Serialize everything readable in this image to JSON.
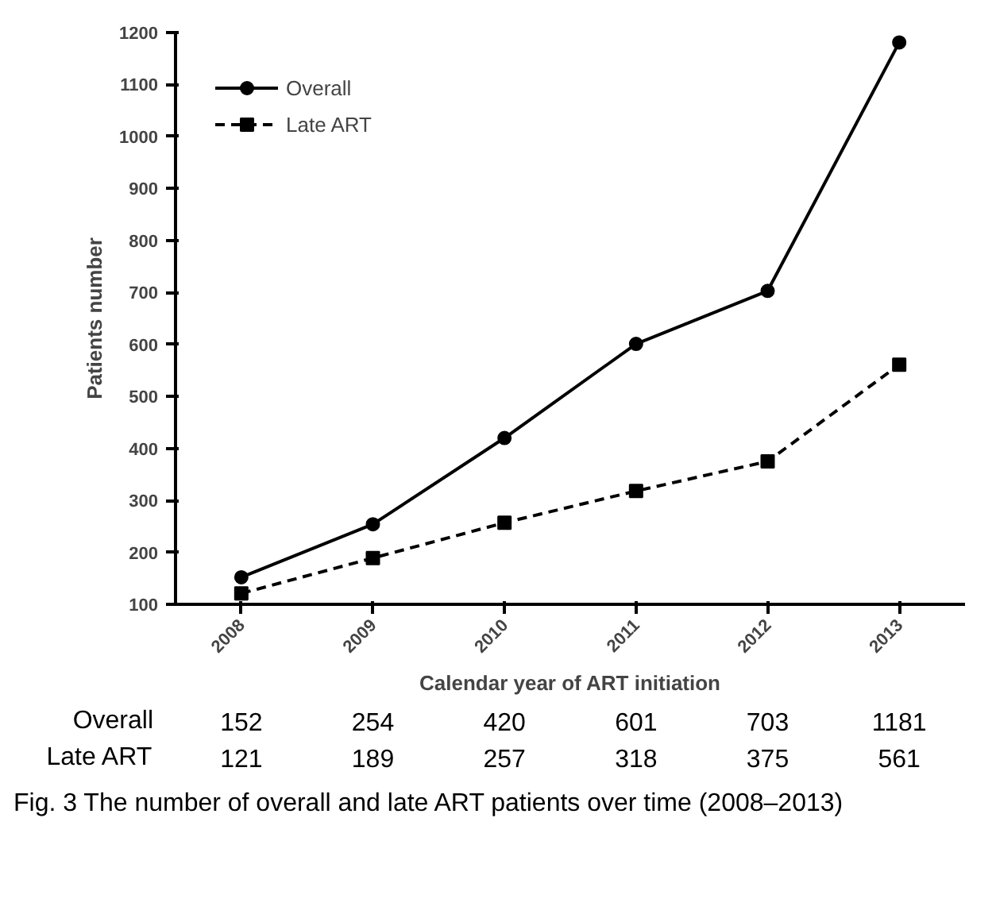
{
  "chart_data": {
    "type": "line",
    "xlabel": "Calendar year of ART initiation",
    "ylabel": "Patients number",
    "categories": [
      "2008",
      "2009",
      "2010",
      "2011",
      "2012",
      "2013"
    ],
    "series": [
      {
        "name": "Overall",
        "color": "#000000",
        "marker": "circle",
        "line_style": "solid",
        "values": [
          152,
          254,
          420,
          601,
          703,
          1181
        ]
      },
      {
        "name": "Late ART",
        "color": "#000000",
        "marker": "square",
        "line_style": "dashed",
        "values": [
          121,
          189,
          257,
          318,
          375,
          561
        ]
      }
    ],
    "ylim": [
      100,
      1200
    ],
    "yticks": [
      100,
      200,
      300,
      400,
      500,
      600,
      700,
      800,
      900,
      1000,
      1100,
      1200
    ],
    "grid": false,
    "legend": "top left",
    "data_labels": true,
    "annotations": [
      "Fig. 3 The number of overall and late ART patients over time (2008–2013)"
    ]
  }
}
